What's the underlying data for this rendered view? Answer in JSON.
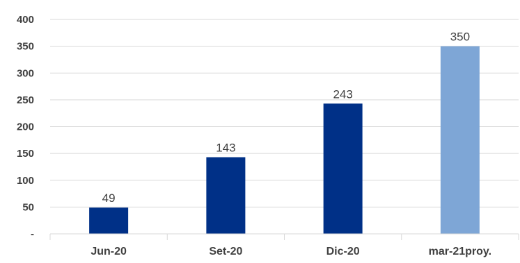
{
  "chart_data": {
    "type": "bar",
    "categories": [
      "Jun-20",
      "Set-20",
      "Dic-20",
      "mar-21proy."
    ],
    "values": [
      49,
      143,
      243,
      350
    ],
    "data_labels": [
      "49",
      "143",
      "243",
      "350"
    ],
    "bar_colors": [
      "#003087",
      "#003087",
      "#003087",
      "#7ea6d6"
    ],
    "ylim": [
      0,
      400
    ],
    "yticks": [
      0,
      50,
      100,
      150,
      200,
      250,
      300,
      350,
      400
    ],
    "ytick_labels": [
      "-",
      "50",
      "100",
      "150",
      "200",
      "250",
      "300",
      "350",
      "400"
    ],
    "grid": true,
    "legend": "none",
    "title": "",
    "xlabel": "",
    "ylabel": ""
  }
}
